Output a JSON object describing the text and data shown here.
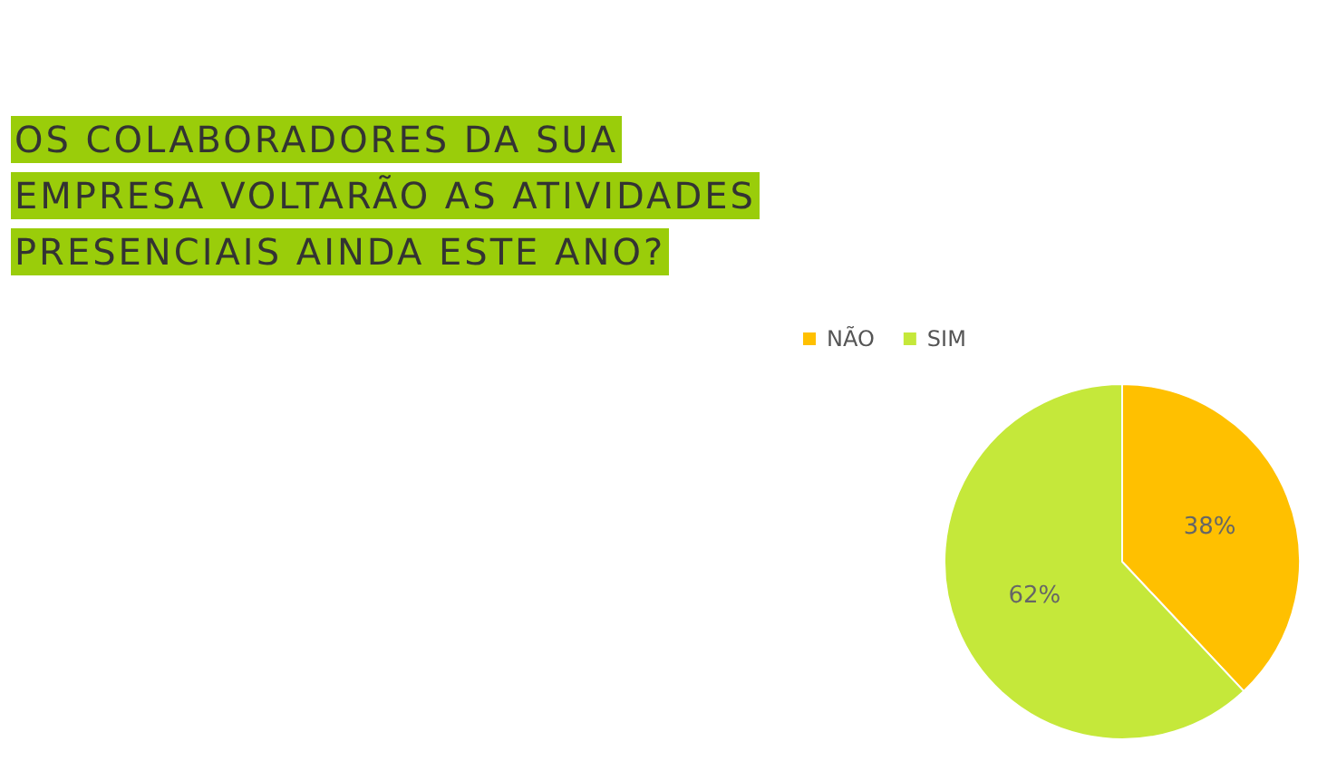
{
  "chart_data": {
    "type": "pie",
    "title": "OS COLABORADORES DA SUA EMPRESA VOLTARÃO AS ATIVIDADES PRESENCIAIS AINDA ESTE ANO?",
    "categories": [
      "NÃO",
      "SIM"
    ],
    "values": [
      38,
      62
    ],
    "value_labels": [
      "38%",
      "62%"
    ],
    "colors": [
      "#ffc000",
      "#c5e83a"
    ],
    "legend": "top left"
  }
}
